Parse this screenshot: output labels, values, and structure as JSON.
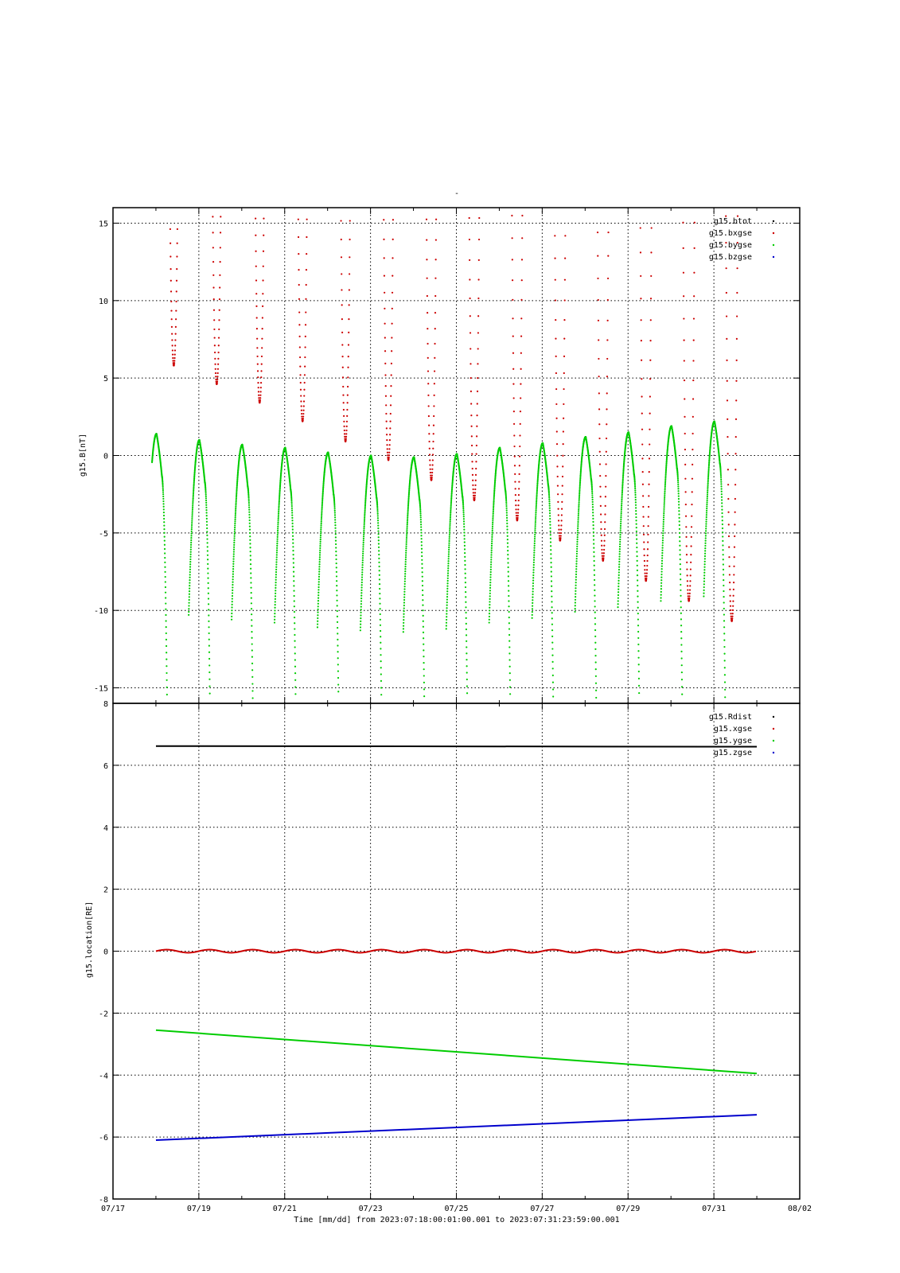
{
  "page_title": "-",
  "chart_data": [
    {
      "type": "scatter",
      "ylabel": "g15.B[nT]",
      "ylim": [
        -16,
        16
      ],
      "yticks": [
        -15,
        -10,
        -5,
        0,
        5,
        10,
        15
      ],
      "grid": true,
      "legend_position": "top-right",
      "legend": [
        {
          "name": "g15.btot",
          "color": "#000000"
        },
        {
          "name": "g15.bxgse",
          "color": "#cc0000"
        },
        {
          "name": "g15.bygse",
          "color": "#00cc00"
        },
        {
          "name": "g15.bzgse",
          "color": "#0000cc"
        }
      ],
      "series": [
        {
          "name": "g15.bxgse",
          "color": "#cc0000",
          "note_shape": "daily V-shaped dips, top clipped above axis",
          "dip_x": [
            "2023-07-18 10:00",
            "2023-07-19 10:00",
            "2023-07-20 10:00",
            "2023-07-21 10:00",
            "2023-07-22 10:00",
            "2023-07-23 10:00",
            "2023-07-24 10:00",
            "2023-07-25 10:00",
            "2023-07-26 10:00",
            "2023-07-27 10:00",
            "2023-07-28 10:00",
            "2023-07-29 10:00",
            "2023-07-30 10:00",
            "2023-07-31 10:00"
          ],
          "dip_y": [
            5.8,
            4.6,
            3.4,
            2.2,
            0.9,
            -0.3,
            -1.6,
            -2.9,
            -4.2,
            -5.5,
            -6.8,
            -8.1,
            -9.4,
            -10.7
          ]
        },
        {
          "name": "g15.bygse",
          "color": "#00cc00",
          "note_shape": "daily peaks, bottom clipped below axis",
          "peak_x": [
            "2023-07-18 00:20",
            "2023-07-19 00:20",
            "2023-07-20 00:20",
            "2023-07-21 00:20",
            "2023-07-22 00:20",
            "2023-07-23 00:20",
            "2023-07-24 00:20",
            "2023-07-25 00:20",
            "2023-07-26 00:20",
            "2023-07-27 00:20",
            "2023-07-28 00:20",
            "2023-07-29 00:20",
            "2023-07-30 00:20",
            "2023-07-31 00:20"
          ],
          "peak_y": [
            1.4,
            1.0,
            0.7,
            0.5,
            0.2,
            0.0,
            -0.1,
            0.1,
            0.5,
            0.8,
            1.2,
            1.5,
            1.9,
            2.2
          ]
        }
      ]
    },
    {
      "type": "line",
      "ylabel": "g15.location[RE]",
      "ylim": [
        -8,
        8
      ],
      "yticks": [
        -8,
        -6,
        -4,
        -2,
        0,
        2,
        4,
        6,
        8
      ],
      "grid": true,
      "legend_position": "top-right",
      "legend": [
        {
          "name": "g15.Rdist",
          "color": "#000000"
        },
        {
          "name": "g15.xgse",
          "color": "#cc0000"
        },
        {
          "name": "g15.ygse",
          "color": "#00cc00"
        },
        {
          "name": "g15.zgse",
          "color": "#0000cc"
        }
      ],
      "series": [
        {
          "name": "g15.Rdist",
          "color": "#000000",
          "x": [
            "2023-07-18 00:01",
            "2023-07-31 23:59"
          ],
          "y": [
            6.62,
            6.6
          ]
        },
        {
          "name": "g15.xgse",
          "color": "#cc0000",
          "mean": 0.0,
          "amplitude": 0.05,
          "period_days": 1
        },
        {
          "name": "g15.ygse",
          "color": "#00cc00",
          "x": [
            "2023-07-18 00:01",
            "2023-07-31 23:59"
          ],
          "y": [
            -2.55,
            -3.95
          ]
        },
        {
          "name": "g15.zgse",
          "color": "#0000cc",
          "x": [
            "2023-07-18 00:01",
            "2023-07-31 23:59"
          ],
          "y": [
            -6.1,
            -5.28
          ]
        }
      ]
    }
  ],
  "x_axis": {
    "tick_labels": [
      "07/17",
      "07/19",
      "07/21",
      "07/23",
      "07/25",
      "07/27",
      "07/29",
      "07/31",
      "08/02"
    ],
    "label": "Time [mm/dd]  from 2023:07:18:00:01:00.001  to  2023:07:31:23:59:00.001"
  }
}
